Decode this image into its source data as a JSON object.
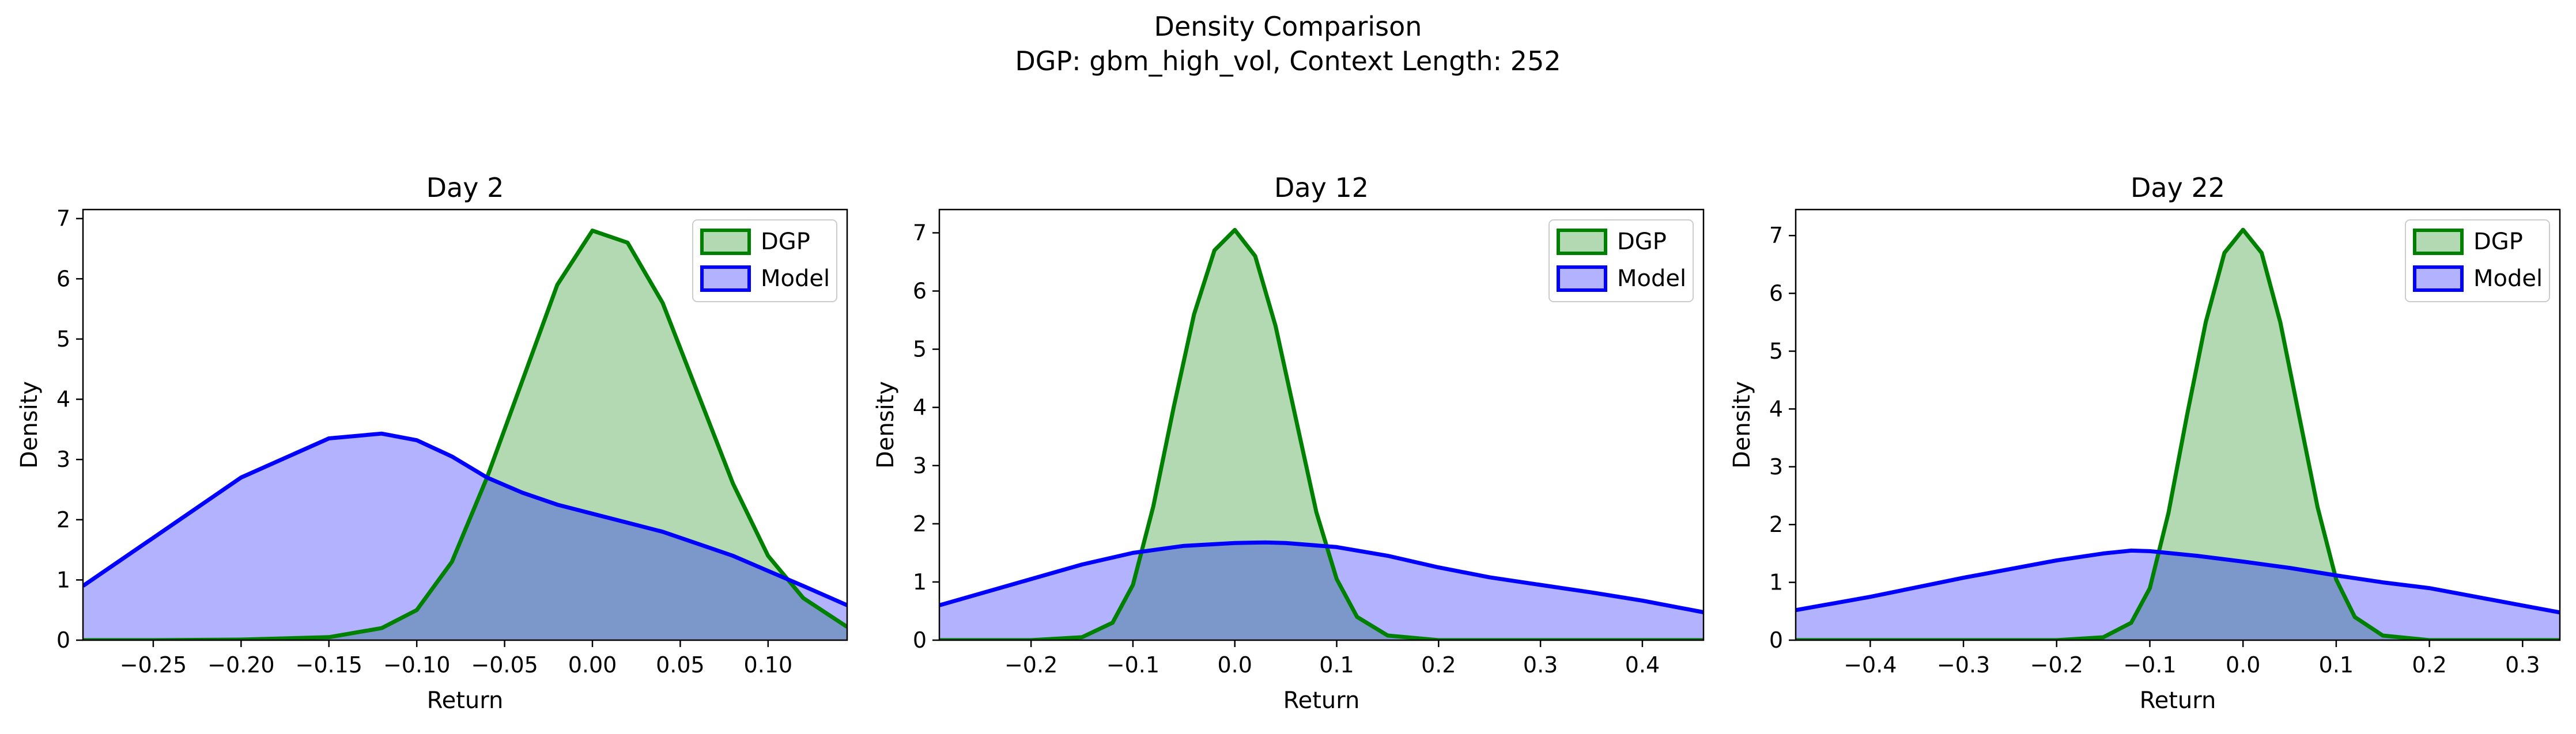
{
  "figure": {
    "title": "Density Comparison",
    "subtitle": "DGP: gbm_high_vol, Context Length: 252"
  },
  "colors": {
    "dgp_line": "#008000",
    "dgp_fill": "#008000",
    "model_line": "#0000ff",
    "model_fill": "#0000ff",
    "overlap": "#7f9bc8"
  },
  "chart_data": [
    {
      "type": "area",
      "title": "Day 2",
      "xlabel": "Return",
      "ylabel": "Density",
      "xlim": [
        -0.29,
        0.145
      ],
      "ylim": [
        0,
        7.15
      ],
      "xticks": [
        -0.25,
        -0.2,
        -0.15,
        -0.1,
        -0.05,
        0.0,
        0.05,
        0.1
      ],
      "xtick_labels": [
        "−0.25",
        "−0.20",
        "−0.15",
        "−0.10",
        "−0.05",
        "0.00",
        "0.05",
        "0.10"
      ],
      "yticks": [
        0,
        1,
        2,
        3,
        4,
        5,
        6,
        7
      ],
      "legend": "top-right",
      "series": [
        {
          "name": "DGP",
          "x": [
            -0.29,
            -0.25,
            -0.2,
            -0.15,
            -0.12,
            -0.1,
            -0.08,
            -0.06,
            -0.04,
            -0.02,
            0.0,
            0.02,
            0.04,
            0.06,
            0.08,
            0.1,
            0.12,
            0.145
          ],
          "y": [
            0.0,
            0.0,
            0.01,
            0.05,
            0.2,
            0.5,
            1.3,
            2.7,
            4.3,
            5.9,
            6.8,
            6.6,
            5.6,
            4.1,
            2.6,
            1.4,
            0.7,
            0.22
          ]
        },
        {
          "name": "Model",
          "x": [
            -0.29,
            -0.25,
            -0.2,
            -0.15,
            -0.12,
            -0.1,
            -0.08,
            -0.06,
            -0.04,
            -0.02,
            0.0,
            0.02,
            0.04,
            0.06,
            0.08,
            0.1,
            0.12,
            0.145
          ],
          "y": [
            0.9,
            1.7,
            2.7,
            3.35,
            3.43,
            3.32,
            3.05,
            2.7,
            2.45,
            2.25,
            2.1,
            1.95,
            1.8,
            1.6,
            1.4,
            1.15,
            0.9,
            0.58
          ]
        }
      ]
    },
    {
      "type": "area",
      "title": "Day 12",
      "xlabel": "Return",
      "ylabel": "Density",
      "xlim": [
        -0.29,
        0.46
      ],
      "ylim": [
        0,
        7.4
      ],
      "xticks": [
        -0.2,
        -0.1,
        0.0,
        0.1,
        0.2,
        0.3,
        0.4
      ],
      "xtick_labels": [
        "−0.2",
        "−0.1",
        "0.0",
        "0.1",
        "0.2",
        "0.3",
        "0.4"
      ],
      "yticks": [
        0,
        1,
        2,
        3,
        4,
        5,
        6,
        7
      ],
      "legend": "top-right",
      "series": [
        {
          "name": "DGP",
          "x": [
            -0.29,
            -0.2,
            -0.15,
            -0.12,
            -0.1,
            -0.08,
            -0.06,
            -0.04,
            -0.02,
            0.0,
            0.02,
            0.04,
            0.06,
            0.08,
            0.1,
            0.12,
            0.15,
            0.2,
            0.3,
            0.46
          ],
          "y": [
            0.0,
            0.0,
            0.05,
            0.3,
            0.95,
            2.3,
            4.0,
            5.6,
            6.7,
            7.05,
            6.6,
            5.4,
            3.8,
            2.2,
            1.05,
            0.4,
            0.08,
            0.0,
            0.0,
            0.0
          ]
        },
        {
          "name": "Model",
          "x": [
            -0.29,
            -0.2,
            -0.15,
            -0.1,
            -0.05,
            0.0,
            0.03,
            0.05,
            0.1,
            0.15,
            0.2,
            0.25,
            0.3,
            0.35,
            0.4,
            0.46
          ],
          "y": [
            0.6,
            1.05,
            1.3,
            1.5,
            1.62,
            1.67,
            1.68,
            1.67,
            1.6,
            1.45,
            1.25,
            1.08,
            0.95,
            0.82,
            0.68,
            0.48
          ]
        }
      ]
    },
    {
      "type": "area",
      "title": "Day 22",
      "xlabel": "Return",
      "ylabel": "Density",
      "xlim": [
        -0.48,
        0.34
      ],
      "ylim": [
        0,
        7.45
      ],
      "xticks": [
        -0.4,
        -0.3,
        -0.2,
        -0.1,
        0.0,
        0.1,
        0.2,
        0.3
      ],
      "xtick_labels": [
        "−0.4",
        "−0.3",
        "−0.2",
        "−0.1",
        "0.0",
        "0.1",
        "0.2",
        "0.3"
      ],
      "yticks": [
        0,
        1,
        2,
        3,
        4,
        5,
        6,
        7
      ],
      "legend": "top-right",
      "series": [
        {
          "name": "DGP",
          "x": [
            -0.48,
            -0.2,
            -0.15,
            -0.12,
            -0.1,
            -0.08,
            -0.06,
            -0.04,
            -0.02,
            0.0,
            0.02,
            0.04,
            0.06,
            0.08,
            0.1,
            0.12,
            0.15,
            0.2,
            0.34
          ],
          "y": [
            0.0,
            0.0,
            0.05,
            0.3,
            0.9,
            2.2,
            3.9,
            5.5,
            6.7,
            7.1,
            6.7,
            5.5,
            3.9,
            2.3,
            1.05,
            0.4,
            0.08,
            0.0,
            0.0
          ]
        },
        {
          "name": "Model",
          "x": [
            -0.48,
            -0.4,
            -0.3,
            -0.2,
            -0.15,
            -0.12,
            -0.1,
            -0.05,
            0.0,
            0.05,
            0.1,
            0.15,
            0.2,
            0.25,
            0.3,
            0.34
          ],
          "y": [
            0.52,
            0.75,
            1.08,
            1.38,
            1.5,
            1.55,
            1.54,
            1.46,
            1.36,
            1.25,
            1.12,
            1.0,
            0.9,
            0.75,
            0.6,
            0.48
          ]
        }
      ]
    }
  ]
}
